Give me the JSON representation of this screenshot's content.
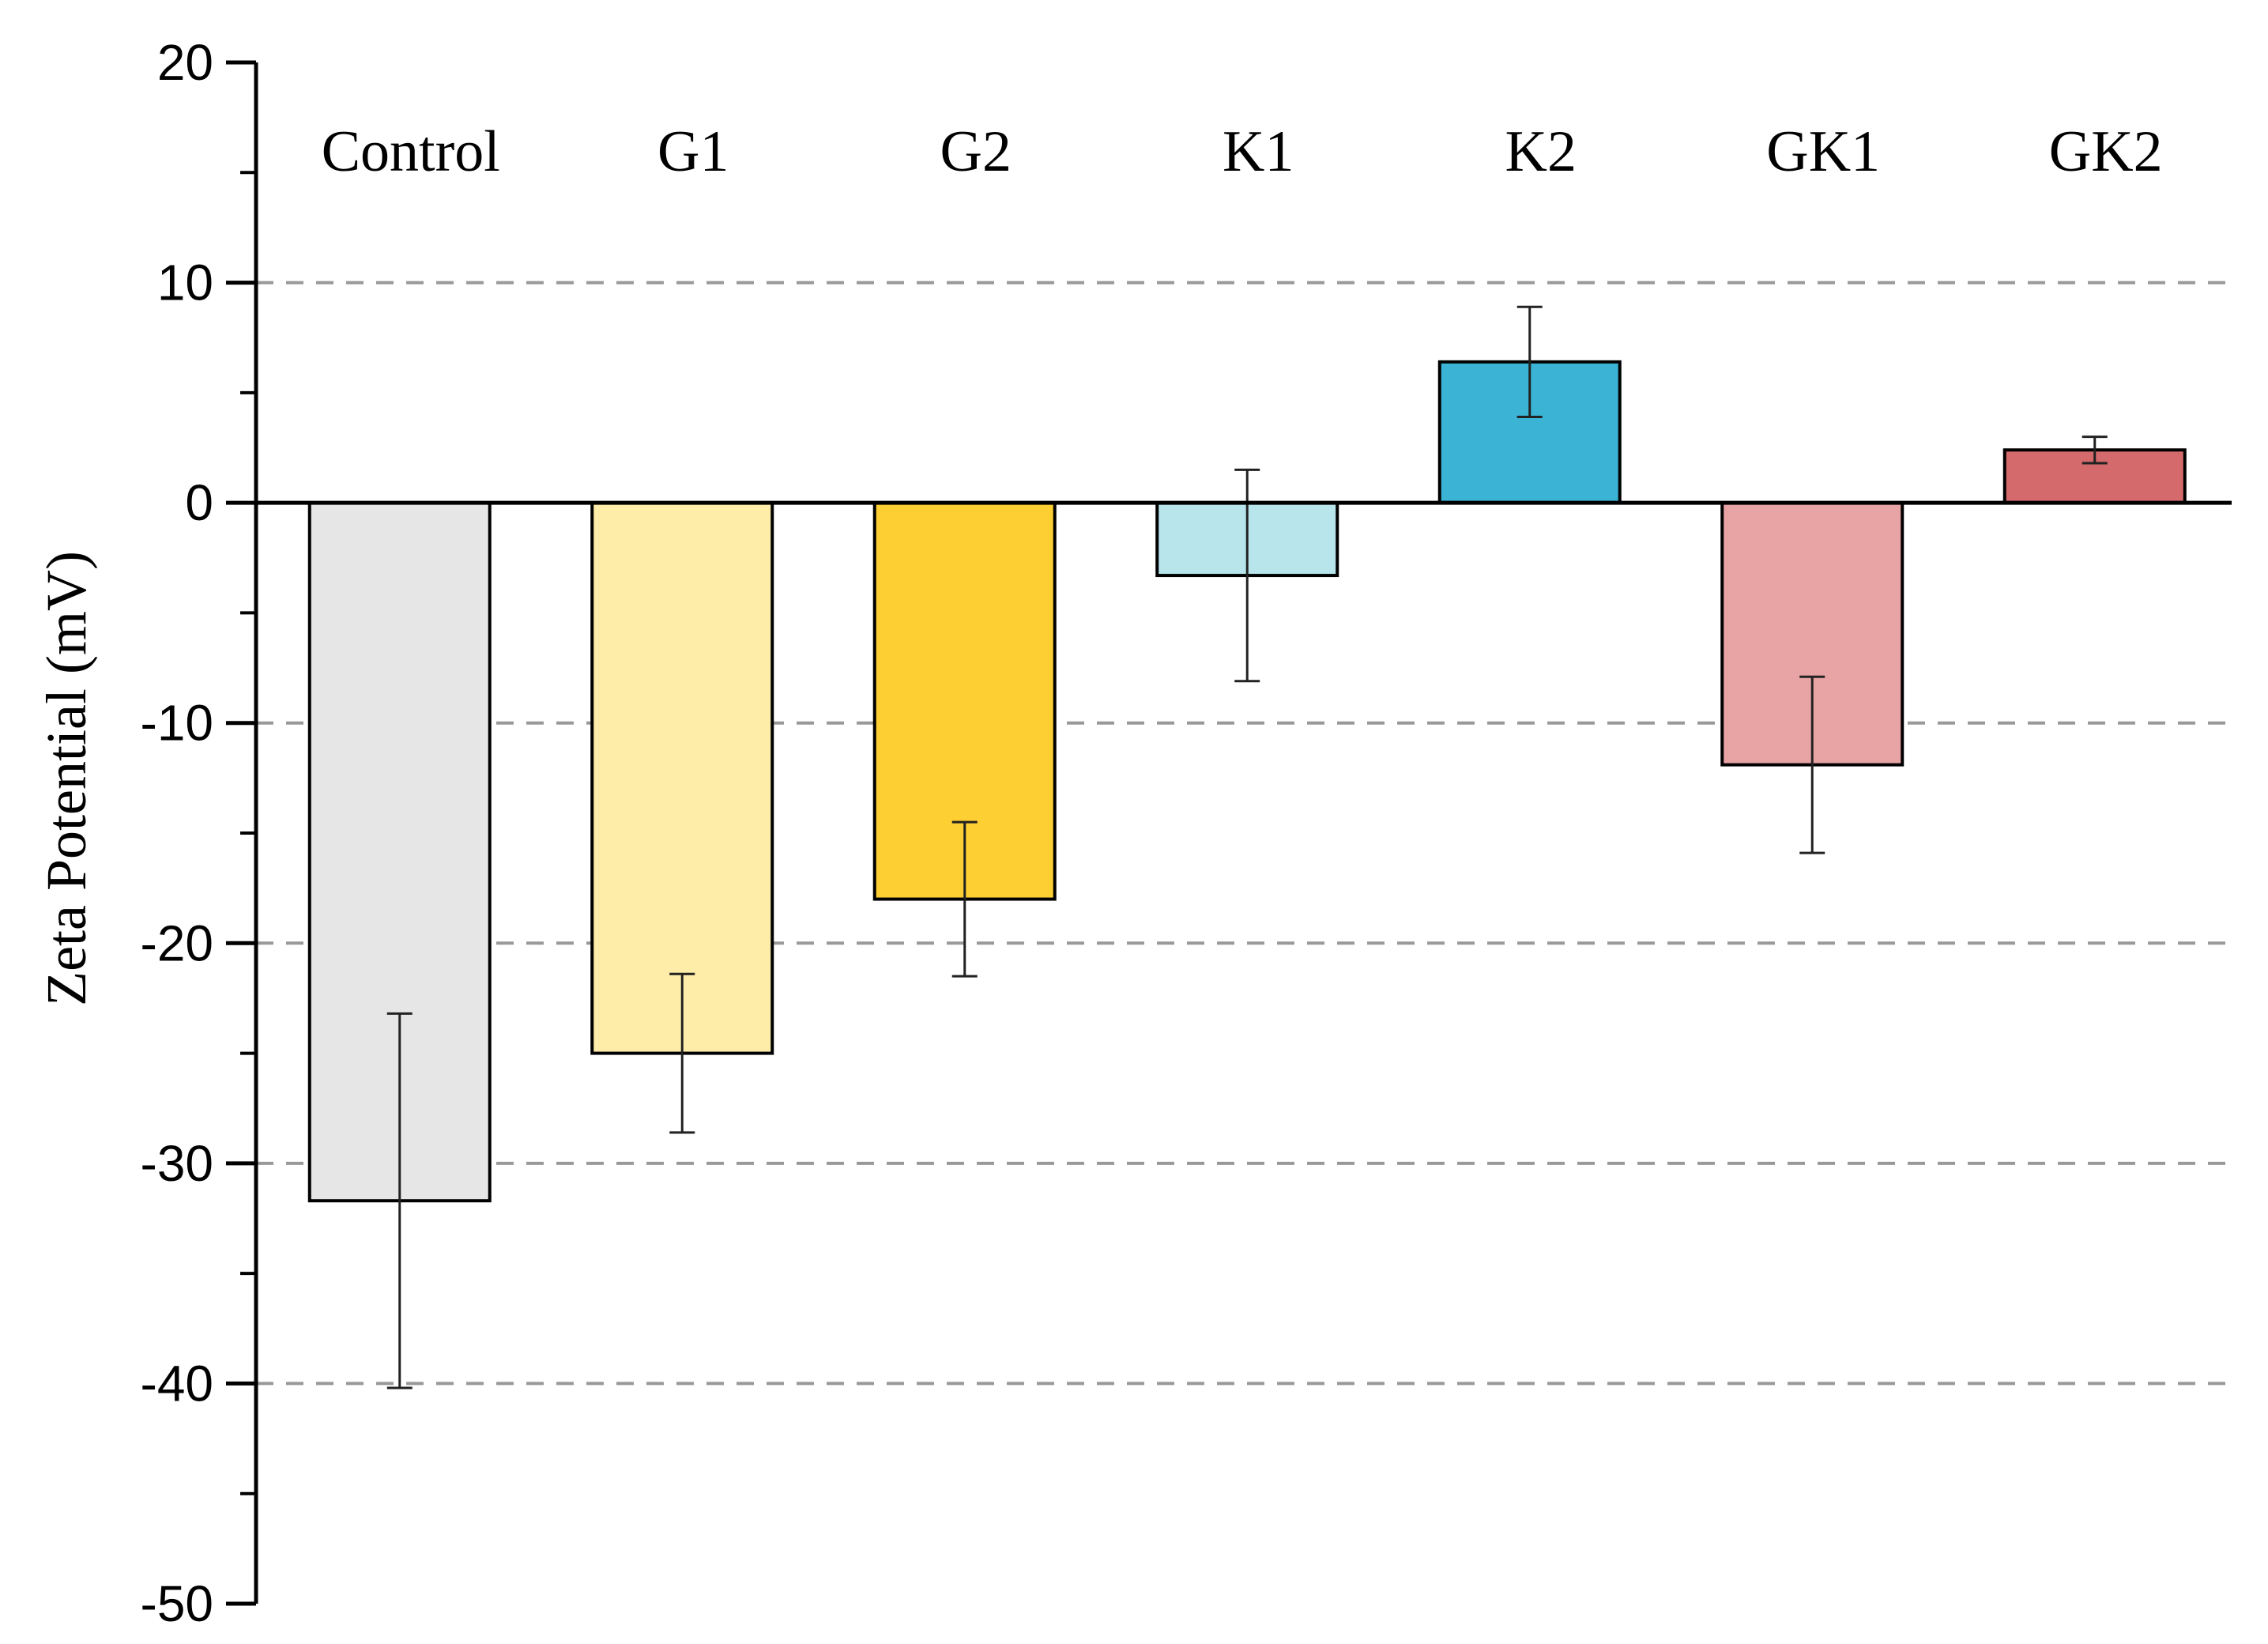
{
  "chart_data": {
    "type": "bar",
    "title": "",
    "xlabel": "",
    "ylabel": "Zeta Potential (mV)",
    "ylim": [
      -50,
      20
    ],
    "yticks": [
      20,
      10,
      0,
      -10,
      -20,
      -30,
      -40,
      -50
    ],
    "ytick_labels": [
      "20",
      "10",
      "0",
      "-10",
      "-20",
      "-30",
      "-40",
      "-50"
    ],
    "grid": "horizontal dashed at 10, -10, -20, -30, -40",
    "grid_values": [
      10,
      -10,
      -20,
      -30,
      -40
    ],
    "category_label_position": "top",
    "categories": [
      "Control",
      "G1",
      "G2",
      "K1",
      "K2",
      "GK1",
      "GK2"
    ],
    "values": [
      -31.7,
      -25.0,
      -18.0,
      -3.3,
      6.4,
      -11.9,
      2.4
    ],
    "errors": [
      8.5,
      3.6,
      3.5,
      4.8,
      2.5,
      4.0,
      0.6
    ],
    "colors": [
      "#e6e6e6",
      "#feeda8",
      "#fecf33",
      "#b8e4ec",
      "#3ab3d5",
      "#e8a3a5",
      "#d46a6c"
    ]
  }
}
